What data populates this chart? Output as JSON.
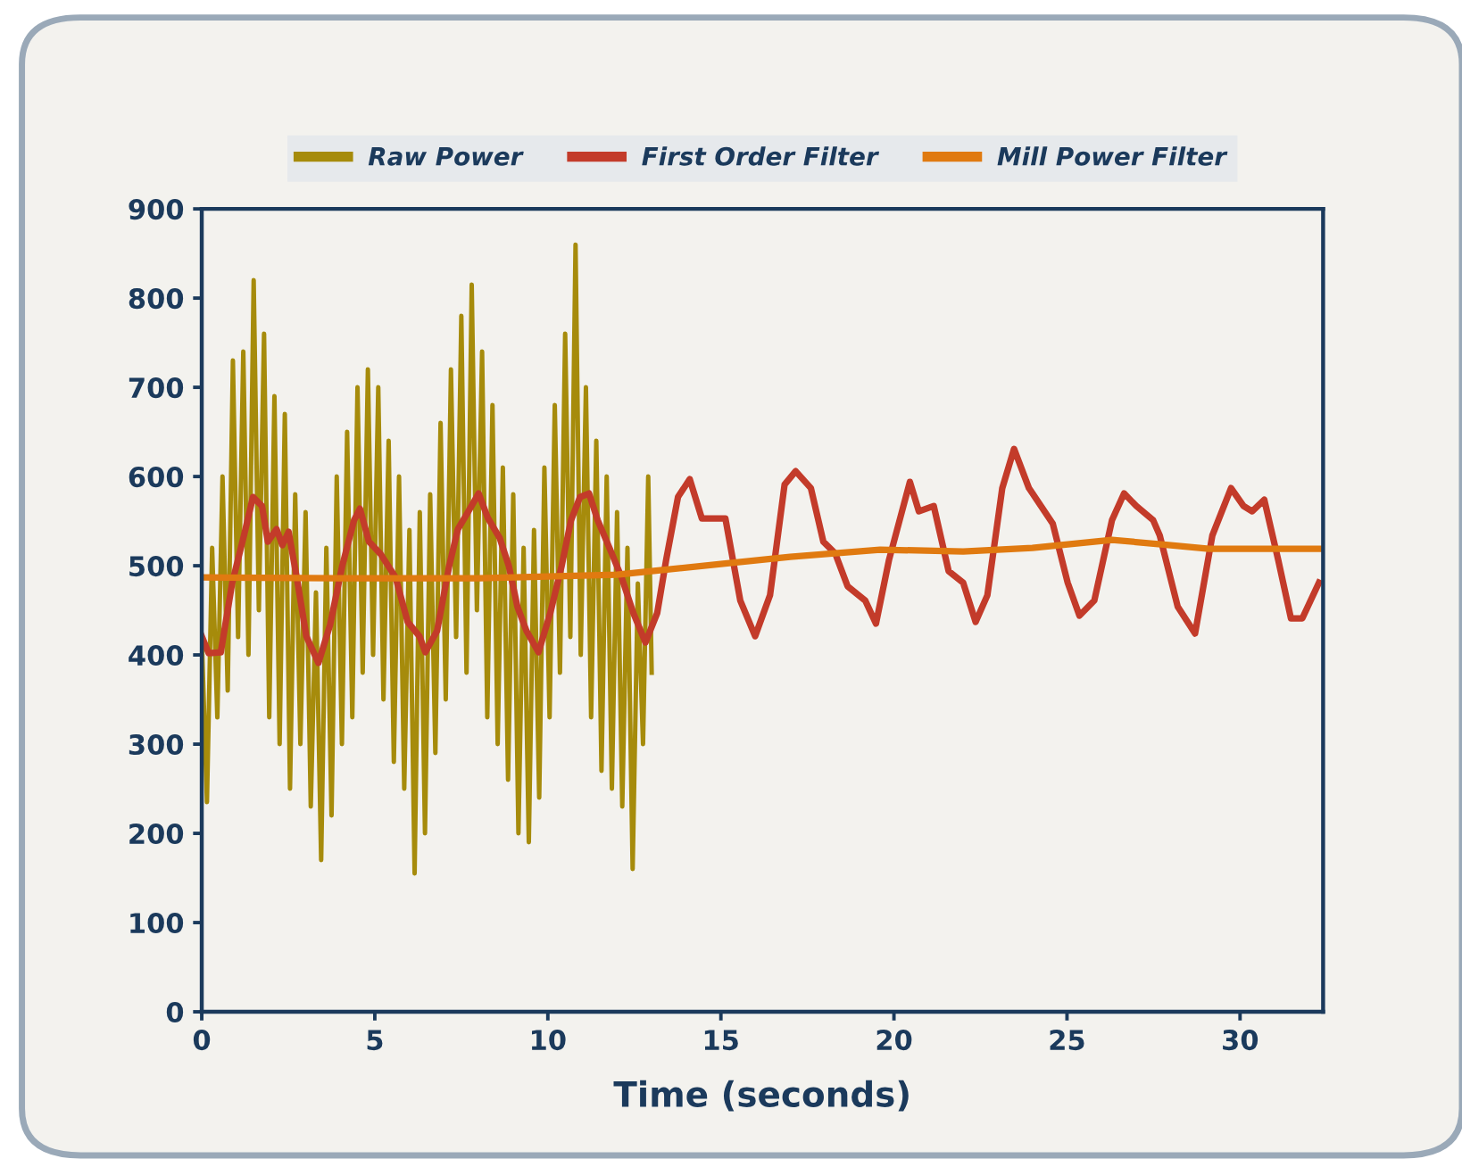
{
  "chart_data": {
    "type": "line",
    "xlabel": "Time (seconds)",
    "xlim": [
      0,
      32.4
    ],
    "xticks": [
      0,
      5,
      10,
      15,
      20,
      25,
      30
    ],
    "ylim": [
      0,
      900
    ],
    "yticks": [
      0,
      100,
      200,
      300,
      400,
      500,
      600,
      700,
      800,
      900
    ],
    "grid": false,
    "legend": "top",
    "line_style": "solid",
    "marker": "none",
    "series": [
      {
        "name": "Raw Power",
        "color": "#a68b0b",
        "x": [
          0,
          0.15,
          0.3,
          0.45,
          0.6,
          0.75,
          0.9,
          1.05,
          1.2,
          1.35,
          1.5,
          1.65,
          1.8,
          1.95,
          2.1,
          2.25,
          2.4,
          2.55,
          2.7,
          2.85,
          3.0,
          3.15,
          3.3,
          3.45,
          3.6,
          3.75,
          3.9,
          4.05,
          4.2,
          4.35,
          4.5,
          4.65,
          4.8,
          4.95,
          5.1,
          5.25,
          5.4,
          5.55,
          5.7,
          5.85,
          6.0,
          6.15,
          6.3,
          6.45,
          6.6,
          6.75,
          6.9,
          7.05,
          7.2,
          7.35,
          7.5,
          7.65,
          7.8,
          7.95,
          8.1,
          8.25,
          8.4,
          8.55,
          8.7,
          8.85,
          9.0,
          9.15,
          9.3,
          9.45,
          9.6,
          9.75,
          9.9,
          10.05,
          10.2,
          10.35,
          10.5,
          10.65,
          10.8,
          10.95,
          11.1,
          11.25,
          11.4,
          11.55,
          11.7,
          11.85,
          12.0,
          12.15,
          12.3,
          12.45,
          12.6,
          12.75,
          12.9,
          13.0
        ],
        "values": [
          420,
          235,
          520,
          330,
          600,
          360,
          730,
          420,
          740,
          400,
          820,
          450,
          760,
          330,
          690,
          300,
          670,
          250,
          580,
          300,
          560,
          230,
          470,
          170,
          520,
          220,
          600,
          300,
          650,
          330,
          700,
          380,
          720,
          400,
          700,
          350,
          640,
          280,
          600,
          250,
          540,
          155,
          560,
          200,
          580,
          290,
          660,
          350,
          720,
          420,
          780,
          380,
          815,
          450,
          740,
          330,
          680,
          300,
          610,
          260,
          580,
          200,
          520,
          190,
          540,
          240,
          610,
          330,
          680,
          380,
          760,
          420,
          860,
          400,
          700,
          330,
          640,
          270,
          600,
          250,
          560,
          230,
          520,
          160,
          480,
          300,
          600,
          380
        ]
      },
      {
        "name": "First Order Filter",
        "color": "#c33b2a",
        "x": [
          0,
          0.2,
          0.55,
          0.88,
          1.22,
          1.48,
          1.74,
          1.91,
          2.16,
          2.33,
          2.51,
          2.77,
          3.02,
          3.37,
          3.71,
          4.06,
          4.4,
          4.57,
          4.83,
          5.17,
          5.6,
          5.95,
          6.29,
          6.46,
          6.8,
          7.15,
          7.4,
          7.66,
          8.0,
          8.26,
          8.61,
          8.87,
          9.12,
          9.38,
          9.73,
          10.07,
          10.4,
          10.67,
          10.93,
          11.19,
          11.44,
          11.78,
          12.13,
          12.47,
          12.82,
          13.16,
          13.42,
          13.76,
          14.1,
          14.45,
          15.13,
          15.56,
          15.99,
          16.42,
          16.84,
          17.16,
          17.6,
          17.96,
          18.3,
          18.66,
          19.17,
          19.48,
          19.86,
          20.46,
          20.72,
          21.15,
          21.58,
          22.0,
          22.36,
          22.7,
          23.13,
          23.47,
          23.9,
          24.59,
          25.02,
          25.36,
          25.79,
          26.3,
          26.65,
          27.0,
          27.49,
          27.68,
          28.2,
          28.7,
          29.2,
          29.74,
          30.1,
          30.35,
          30.7,
          31.1,
          31.47,
          31.8,
          32.28
        ],
        "values": [
          421,
          402,
          403,
          481,
          534,
          577,
          567,
          527,
          541,
          523,
          538,
          481,
          421,
          391,
          434,
          500,
          551,
          564,
          527,
          513,
          487,
          437,
          421,
          403,
          427,
          500,
          541,
          558,
          581,
          554,
          531,
          500,
          454,
          427,
          403,
          447,
          500,
          551,
          577,
          581,
          551,
          520,
          487,
          447,
          414,
          447,
          507,
          577,
          597,
          553,
          553,
          461,
          421,
          467,
          591,
          606,
          587,
          527,
          514,
          477,
          461,
          435,
          507,
          594,
          561,
          567,
          494,
          481,
          437,
          467,
          587,
          631,
          587,
          547,
          481,
          444,
          461,
          551,
          581,
          567,
          551,
          534,
          454,
          424,
          534,
          587,
          567,
          561,
          574,
          507,
          441,
          441,
          481
        ]
      },
      {
        "name": "Mill Power Filter",
        "color": "#e07a10",
        "x": [
          0,
          4,
          8,
          12,
          13,
          15,
          17,
          19.6,
          22,
          24,
          26.3,
          28,
          29.1,
          32.4
        ],
        "values": [
          487,
          486,
          486,
          490,
          494,
          502,
          510,
          518,
          516,
          520,
          529,
          523,
          519,
          519
        ]
      }
    ]
  }
}
